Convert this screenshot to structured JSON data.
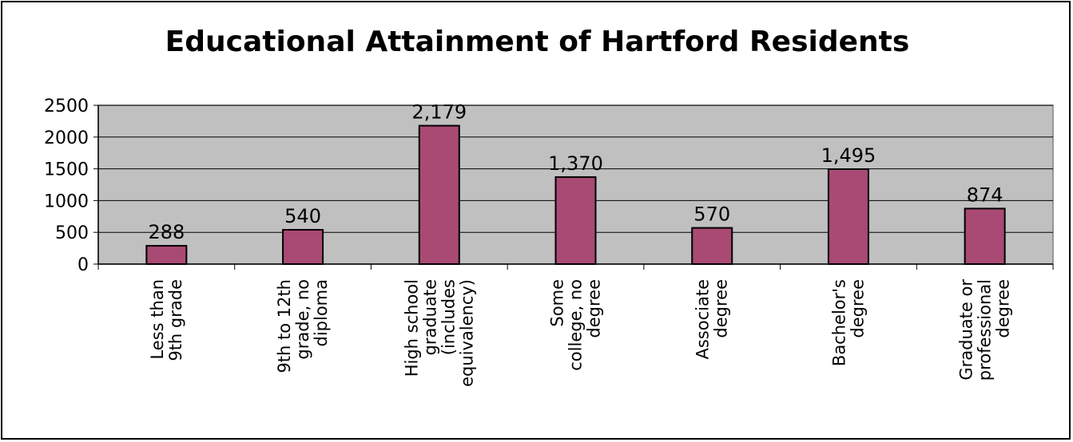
{
  "chart_data": {
    "type": "bar",
    "title": "Educational Attainment of Hartford Residents",
    "xlabel": "",
    "ylabel": "",
    "ylim": [
      0,
      2500
    ],
    "yticks": [
      0,
      500,
      1000,
      1500,
      2000,
      2500
    ],
    "grid": true,
    "legend": "none",
    "categories": [
      [
        "Less than",
        "9th grade"
      ],
      [
        "9th to 12th",
        "grade, no",
        "diploma"
      ],
      [
        "High school",
        "graduate",
        "(includes",
        "equivalency)"
      ],
      [
        "Some",
        "college, no",
        "degree"
      ],
      [
        "Associate",
        "degree"
      ],
      [
        "Bachelor's",
        "degree"
      ],
      [
        "Graduate or",
        "professional",
        "degree"
      ]
    ],
    "values": [
      288,
      540,
      2179,
      1370,
      570,
      1495,
      874
    ],
    "data_labels": [
      "288",
      "540",
      "2,179",
      "1,370",
      "570",
      "1,495",
      "874"
    ],
    "colors": {
      "bar_fill": "#a94a74",
      "bar_stroke": "#000000",
      "plot_bg": "#c0c0c0",
      "plot_border": "#808080",
      "gridline": "#000000"
    }
  }
}
